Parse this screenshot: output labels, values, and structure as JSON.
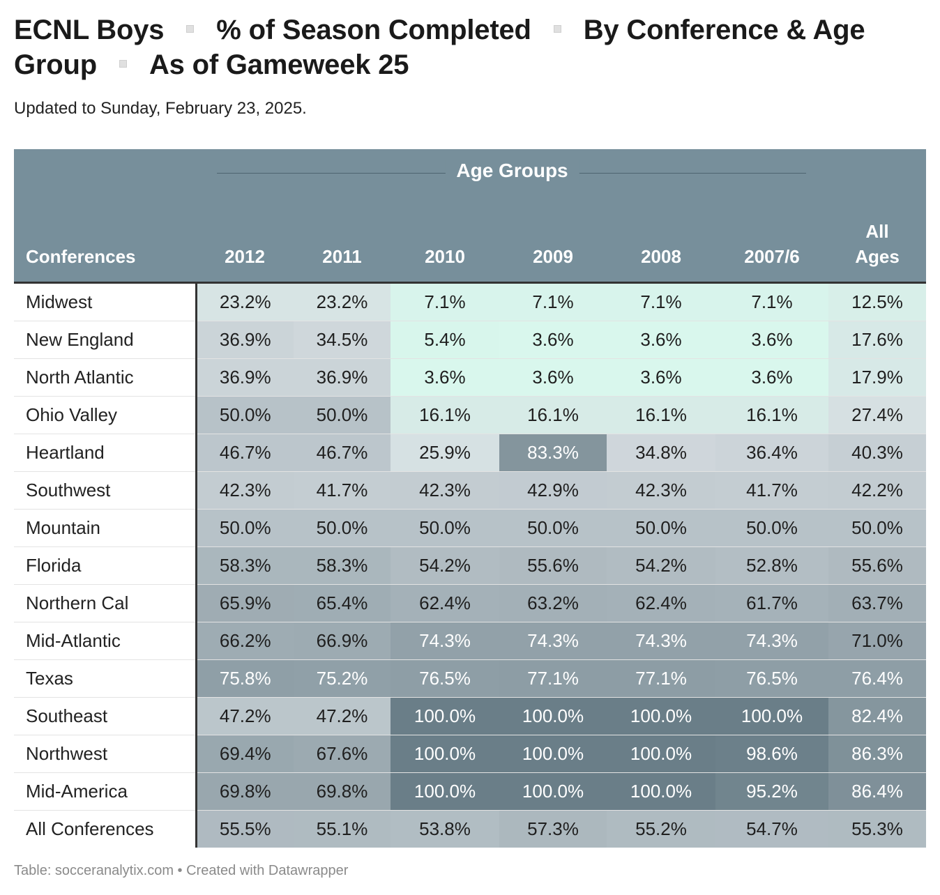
{
  "title_parts": [
    "ECNL Boys",
    "% of Season Completed",
    "By Conference & Age Group",
    "As of Gameweek 25"
  ],
  "subtitle": "Updated to Sunday, February 23, 2025.",
  "footer": "Table: socceranalytix.com • Created with Datawrapper",
  "colors": {
    "header_bg": "#778f9b",
    "header_text": "#ffffff",
    "low": "#d9fbef",
    "high": "#6a7e88"
  },
  "chart_data": {
    "type": "table",
    "group_header": "Age Groups",
    "row_header": "Conferences",
    "columns": [
      "2012",
      "2011",
      "2010",
      "2009",
      "2008",
      "2007/6"
    ],
    "summary_column": [
      "All",
      "Ages"
    ],
    "rows": [
      {
        "name": "Midwest",
        "values": [
          "23.2%",
          "23.2%",
          "7.1%",
          "7.1%",
          "7.1%",
          "7.1%",
          "12.5%"
        ]
      },
      {
        "name": "New England",
        "values": [
          "36.9%",
          "34.5%",
          "5.4%",
          "3.6%",
          "3.6%",
          "3.6%",
          "17.6%"
        ]
      },
      {
        "name": "North Atlantic",
        "values": [
          "36.9%",
          "36.9%",
          "3.6%",
          "3.6%",
          "3.6%",
          "3.6%",
          "17.9%"
        ]
      },
      {
        "name": "Ohio Valley",
        "values": [
          "50.0%",
          "50.0%",
          "16.1%",
          "16.1%",
          "16.1%",
          "16.1%",
          "27.4%"
        ]
      },
      {
        "name": "Heartland",
        "values": [
          "46.7%",
          "46.7%",
          "25.9%",
          "83.3%",
          "34.8%",
          "36.4%",
          "40.3%"
        ]
      },
      {
        "name": "Southwest",
        "values": [
          "42.3%",
          "41.7%",
          "42.3%",
          "42.9%",
          "42.3%",
          "41.7%",
          "42.2%"
        ]
      },
      {
        "name": "Mountain",
        "values": [
          "50.0%",
          "50.0%",
          "50.0%",
          "50.0%",
          "50.0%",
          "50.0%",
          "50.0%"
        ]
      },
      {
        "name": "Florida",
        "values": [
          "58.3%",
          "58.3%",
          "54.2%",
          "55.6%",
          "54.2%",
          "52.8%",
          "55.6%"
        ]
      },
      {
        "name": "Northern Cal",
        "values": [
          "65.9%",
          "65.4%",
          "62.4%",
          "63.2%",
          "62.4%",
          "61.7%",
          "63.7%"
        ]
      },
      {
        "name": "Mid-Atlantic",
        "values": [
          "66.2%",
          "66.9%",
          "74.3%",
          "74.3%",
          "74.3%",
          "74.3%",
          "71.0%"
        ]
      },
      {
        "name": "Texas",
        "values": [
          "75.8%",
          "75.2%",
          "76.5%",
          "77.1%",
          "77.1%",
          "76.5%",
          "76.4%"
        ]
      },
      {
        "name": "Southeast",
        "values": [
          "47.2%",
          "47.2%",
          "100.0%",
          "100.0%",
          "100.0%",
          "100.0%",
          "82.4%"
        ]
      },
      {
        "name": "Northwest",
        "values": [
          "69.4%",
          "67.6%",
          "100.0%",
          "100.0%",
          "100.0%",
          "98.6%",
          "86.3%"
        ]
      },
      {
        "name": "Mid-America",
        "values": [
          "69.8%",
          "69.8%",
          "100.0%",
          "100.0%",
          "100.0%",
          "95.2%",
          "86.4%"
        ]
      },
      {
        "name": "All Conferences",
        "values": [
          "55.5%",
          "55.1%",
          "53.8%",
          "57.3%",
          "55.2%",
          "54.7%",
          "55.3%"
        ]
      }
    ]
  }
}
